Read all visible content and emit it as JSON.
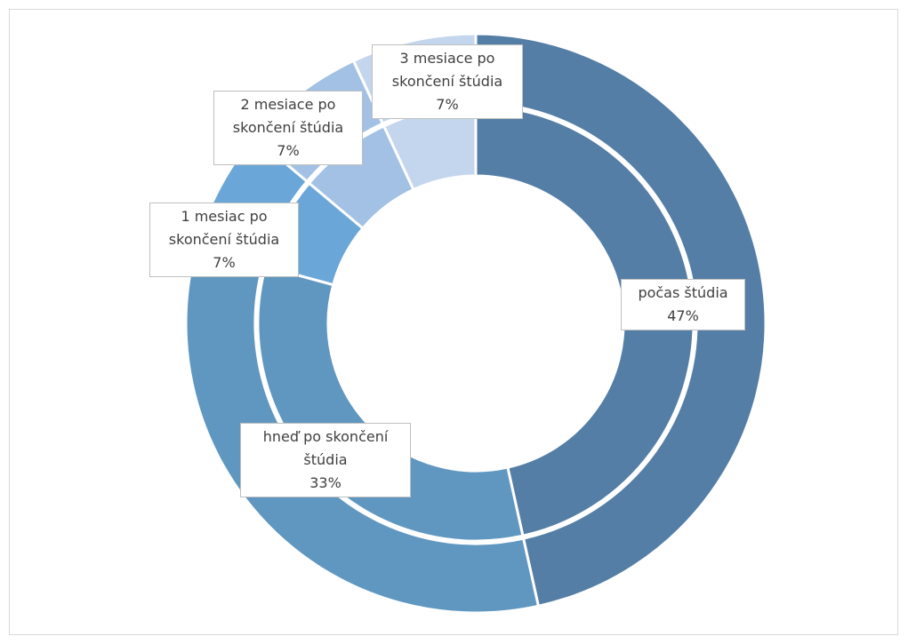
{
  "chart_data": {
    "type": "doughnut",
    "categories": [
      "počas štúdia",
      "hneď po skončení štúdia",
      "1 mesiac po skončení štúdia",
      "2 mesiace po skončení štúdia",
      "3 mesiace po skončení štúdia"
    ],
    "values": [
      47,
      33,
      7,
      7,
      7
    ],
    "value_labels": [
      "47%",
      "33%",
      "7%",
      "7%",
      "7%"
    ],
    "colors": [
      "#547ea5",
      "#6097c1",
      "#6aa6d8",
      "#a2c1e4",
      "#c4d6ed"
    ]
  }
}
